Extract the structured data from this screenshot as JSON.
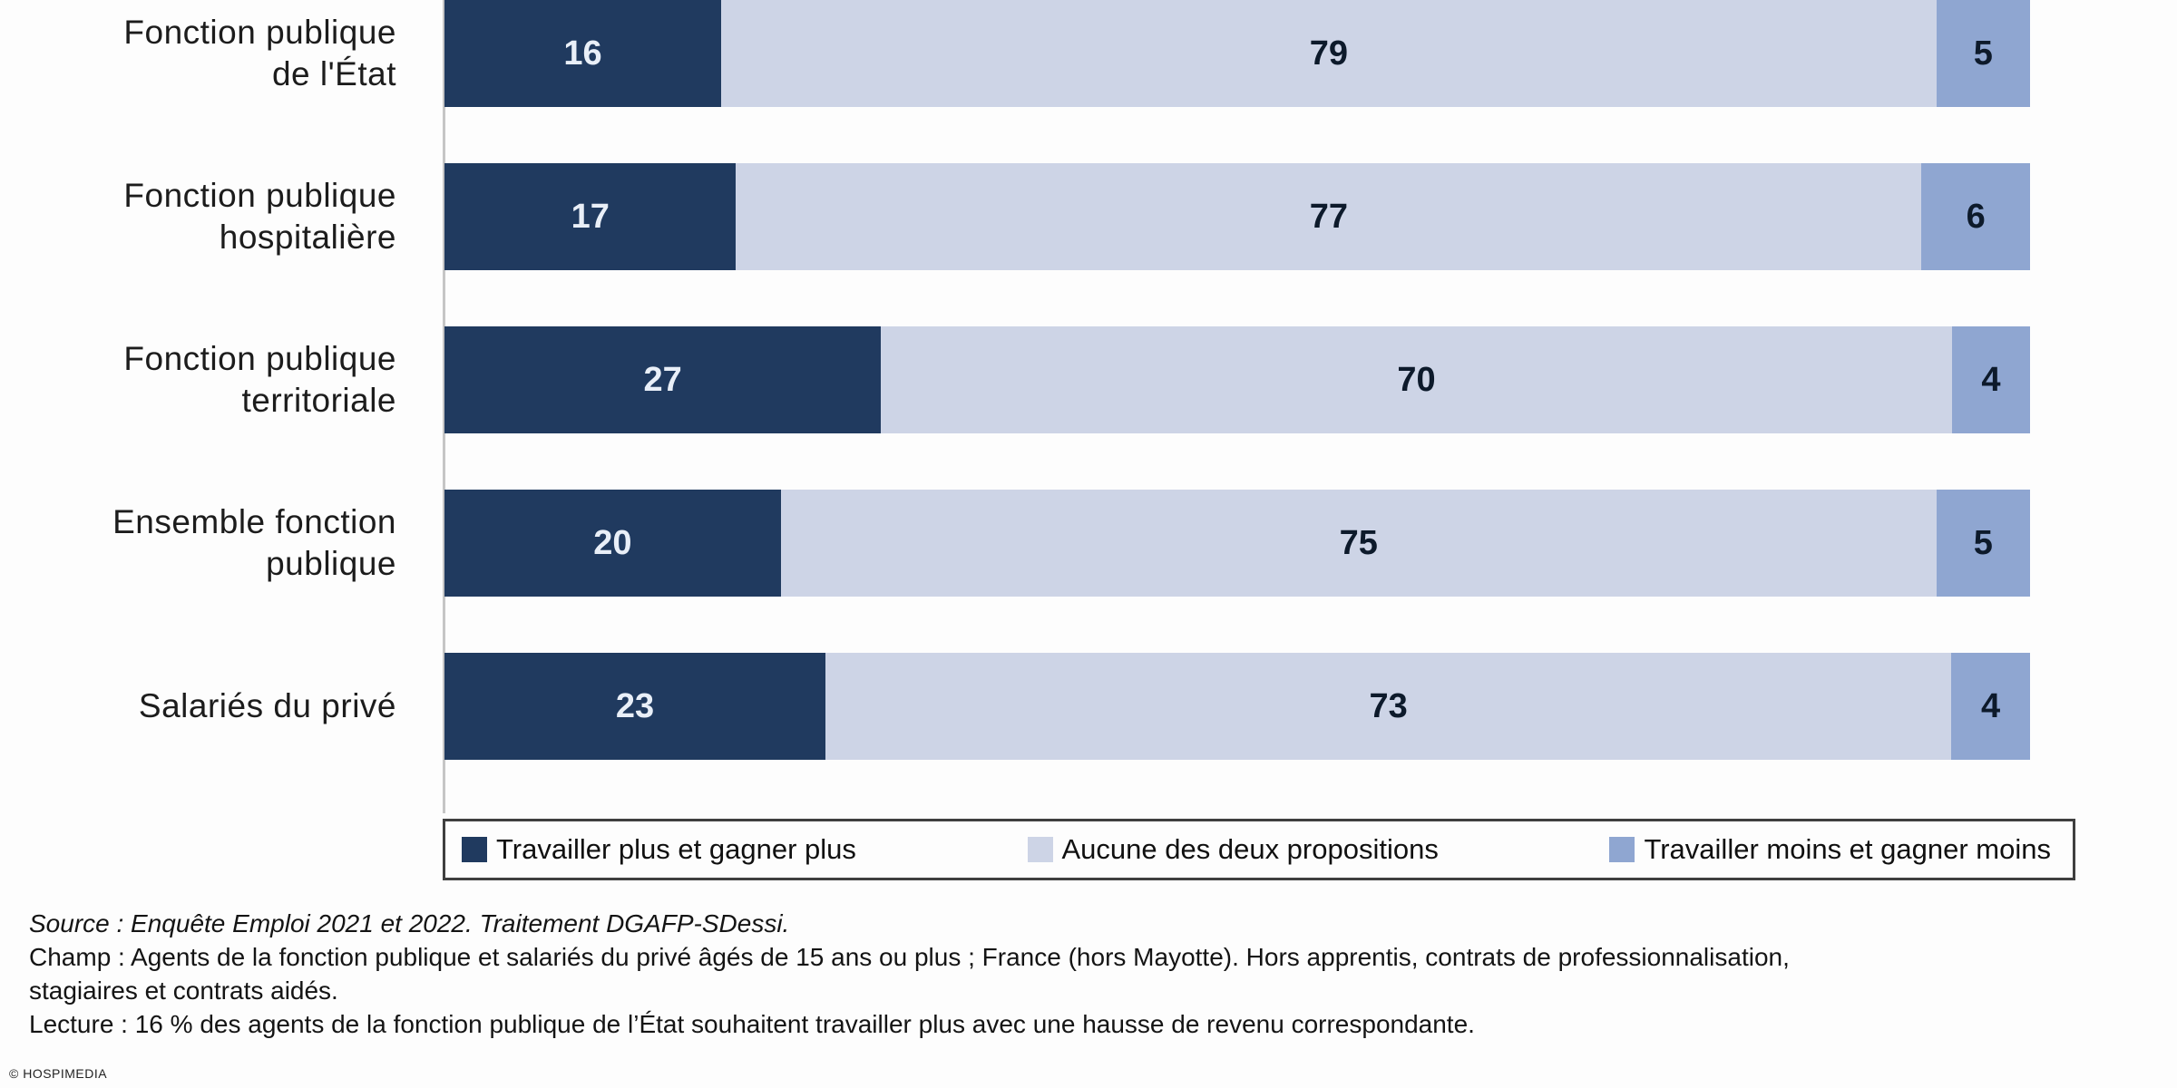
{
  "colors": {
    "background": "#fdfdfd",
    "axis_line": "#c6c6c6",
    "category_label_text": "#1c1c1c",
    "value_on_dark": "#e9eff8",
    "value_on_light": "#0d1a2b",
    "legend_border": "#3f3f3f",
    "footer_text": "#141414"
  },
  "chart_data": {
    "type": "bar",
    "orientation": "horizontal",
    "stacked": true,
    "unit": "%",
    "xlim": [
      0,
      100
    ],
    "grid": false,
    "legend_position": "bottom",
    "categories": [
      "Fonction publique de l'État",
      "Fonction publique hospitalière",
      "Fonction publique territoriale",
      "Ensemble fonction publique",
      "Salariés du privé"
    ],
    "category_lines": [
      [
        "Fonction publique",
        "de l'État"
      ],
      [
        "Fonction publique",
        "hospitalière"
      ],
      [
        "Fonction publique",
        "territoriale"
      ],
      [
        "Ensemble fonction",
        "publique"
      ],
      [
        "Salariés du privé"
      ]
    ],
    "series": [
      {
        "name": "Travailler plus et gagner plus",
        "color": "#203a5f",
        "values": [
          16,
          17,
          27,
          20,
          23
        ]
      },
      {
        "name": "Aucune des deux propositions",
        "color": "#cdd4e6",
        "values": [
          79,
          77,
          70,
          75,
          73
        ]
      },
      {
        "name": "Travailler moins et gagner moins",
        "color": "#8fa6d1",
        "values": [
          5,
          6,
          4,
          5,
          4
        ]
      }
    ]
  },
  "footer": {
    "source": "Source : Enquête Emploi 2021 et 2022. Traitement DGAFP-SDessi.",
    "champ_lines": [
      "Champ : Agents de la fonction publique et salariés du privé âgés de 15 ans ou plus ; France (hors Mayotte). Hors apprentis, contrats de professionnalisation,",
      "stagiaires et contrats aidés."
    ],
    "lecture": "Lecture : 16 % des agents de la fonction publique de l’État souhaitent travailler plus avec une hausse de revenu correspondante."
  },
  "copyright": "© HOSPIMEDIA"
}
